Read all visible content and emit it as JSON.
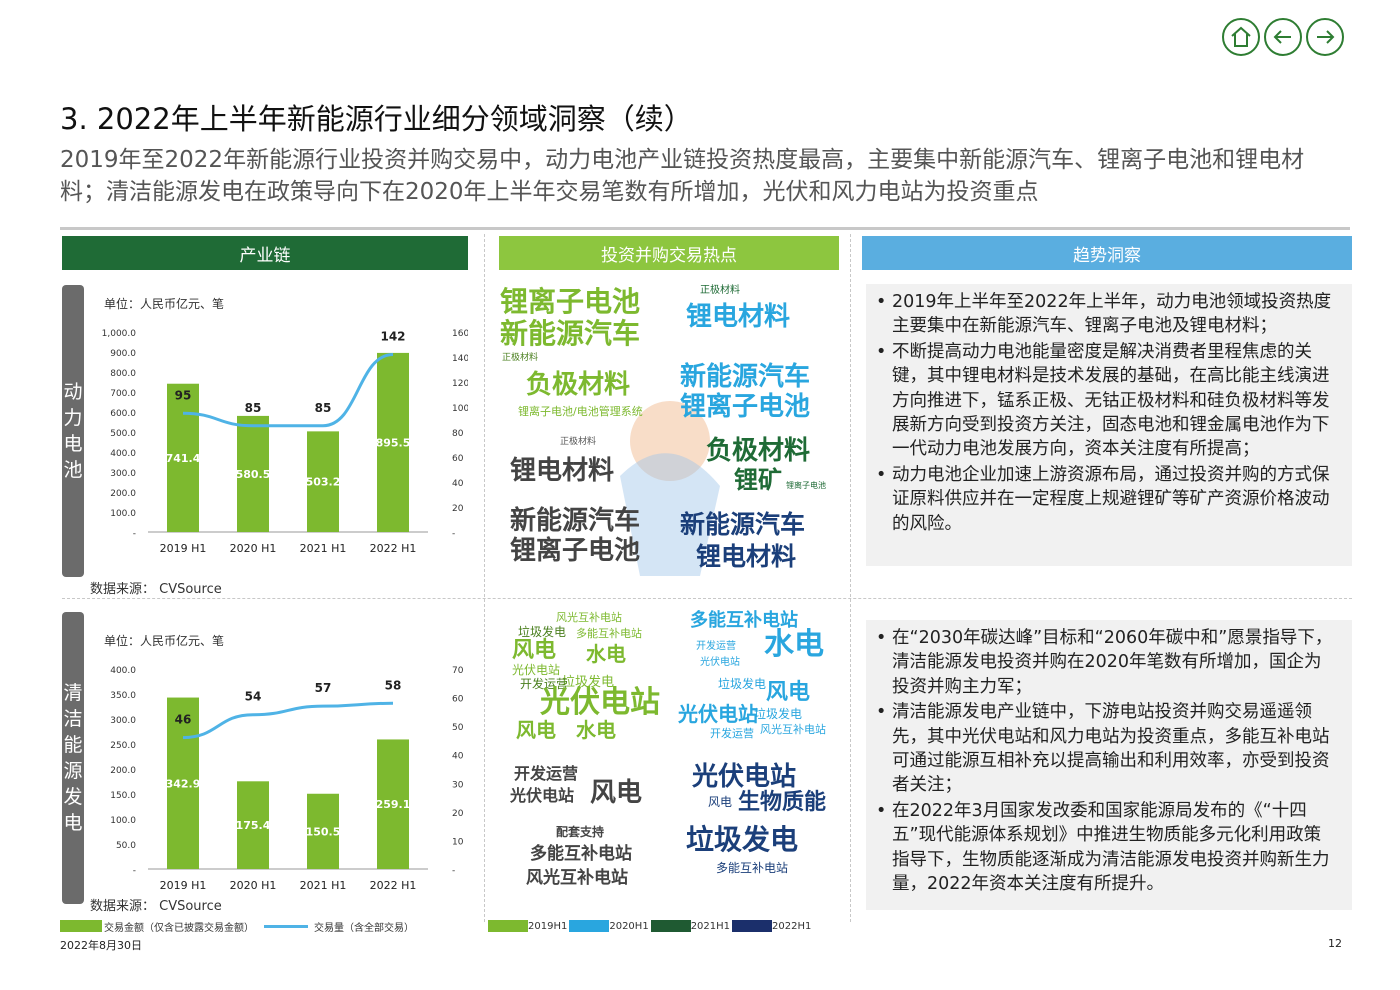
{
  "nav": {
    "home_icon": "home-icon",
    "back_icon": "arrow-left-icon",
    "next_icon": "arrow-right-icon",
    "color": "#2e7d32"
  },
  "title": "3. 2022年上半年新能源行业细分领域洞察（续）",
  "subtitle": "2019年至2022年新能源行业投资并购交易中，动力电池产业链投资热度最高，主要集中新能源汽车、锂离子电池和锂电材料；清洁能源发电在政策导向下在2020年上半年交易笔数有所增加，光伏和风力电站为投资重点",
  "columns": {
    "chain": {
      "label": "产业链",
      "color": "#1f6b36"
    },
    "hotspot": {
      "label": "投资并购交易热点",
      "color": "#8dc63f"
    },
    "trend": {
      "label": "趋势洞察",
      "color": "#5aaee0"
    }
  },
  "colors": {
    "bar": "#7db92f",
    "line": "#4fb3e6"
  },
  "sections": [
    {
      "side_label": "动力电池",
      "unit": "单位：人民币亿元、笔",
      "source": "数据来源：  CVSource",
      "chart_data": {
        "type": "bar",
        "categories": [
          "2019 H1",
          "2020 H1",
          "2021 H1",
          "2022 H1"
        ],
        "series": [
          {
            "name": "交易金额（仅含已披露交易金额）",
            "kind": "bar",
            "axis": "left",
            "values": [
              741.4,
              580.5,
              503.2,
              895.5
            ]
          },
          {
            "name": "交易量（含全部交易）",
            "kind": "line",
            "axis": "right",
            "values": [
              95,
              85,
              85,
              142
            ]
          }
        ],
        "y_left": {
          "range": [
            0,
            1000
          ],
          "ticks": [
            "-",
            "100.0",
            "200.0",
            "300.0",
            "400.0",
            "500.0",
            "600.0",
            "700.0",
            "800.0",
            "900.0",
            "1,000.0"
          ]
        },
        "y_right": {
          "range": [
            0,
            160
          ],
          "ticks": [
            "-",
            "20",
            "40",
            "60",
            "80",
            "100",
            "120",
            "140",
            "160"
          ]
        },
        "bar_labels": [
          "741.4",
          "580.5",
          "503.2",
          "895.5"
        ],
        "line_labels": [
          "95",
          "85",
          "85",
          "142"
        ]
      },
      "cloud": [
        [
          "锂离子电池",
          28,
          "#7db92f",
          0,
          12,
          true
        ],
        [
          "新能源汽车",
          28,
          "#7db92f",
          0,
          44,
          true
        ],
        [
          "正极材料",
          9,
          "#4a7f1e",
          2,
          78,
          false
        ],
        [
          "负极材料",
          26,
          "#7db92f",
          26,
          96,
          true
        ],
        [
          "锂离子电池/电池管理系统",
          11,
          "#7db92f",
          18,
          130,
          false
        ],
        [
          "锂电材料",
          26,
          "#444444",
          10,
          182,
          true
        ],
        [
          "正极材料",
          9,
          "#555555",
          60,
          162,
          false
        ],
        [
          "新能源汽车",
          26,
          "#444444",
          10,
          232,
          true
        ],
        [
          "锂离子电池",
          26,
          "#444444",
          10,
          262,
          true
        ],
        [
          "正极材料",
          10,
          "#1f6b36",
          200,
          10,
          false
        ],
        [
          "锂电材料",
          26,
          "#29a6df",
          186,
          28,
          true
        ],
        [
          "新能源汽车",
          26,
          "#29a6df",
          180,
          88,
          true
        ],
        [
          "锂离子电池",
          26,
          "#29a6df",
          180,
          118,
          true
        ],
        [
          "负极材料",
          26,
          "#1f6b36",
          206,
          162,
          true
        ],
        [
          "锂矿",
          24,
          "#1f6b36",
          234,
          192,
          true
        ],
        [
          "锂离子电池",
          8,
          "#1f6b36",
          286,
          206,
          false
        ],
        [
          "新能源汽车",
          25,
          "#1b3f7a",
          180,
          236,
          true
        ],
        [
          "锂电材料",
          25,
          "#1b3f7a",
          196,
          268,
          true
        ]
      ]
    },
    {
      "side_label": "清洁能源发电",
      "unit": "单位：人民币亿元、笔",
      "source": "数据来源：  CVSource",
      "chart_data": {
        "type": "bar",
        "categories": [
          "2019 H1",
          "2020 H1",
          "2021 H1",
          "2022 H1"
        ],
        "series": [
          {
            "name": "交易金额（仅含已披露交易金额）",
            "kind": "bar",
            "axis": "left",
            "values": [
              342.9,
              175.4,
              150.5,
              259.1
            ]
          },
          {
            "name": "交易量（含全部交易）",
            "kind": "line",
            "axis": "right",
            "values": [
              46,
              54,
              57,
              58
            ]
          }
        ],
        "y_left": {
          "range": [
            0,
            400
          ],
          "ticks": [
            "-",
            "50.0",
            "100.0",
            "150.0",
            "200.0",
            "250.0",
            "300.0",
            "350.0",
            "400.0"
          ]
        },
        "y_right": {
          "range": [
            0,
            70
          ],
          "ticks": [
            "-",
            "10",
            "20",
            "30",
            "40",
            "50",
            "60",
            "70"
          ]
        },
        "bar_labels": [
          "342.9",
          "175.4",
          "150.5",
          "259.1"
        ],
        "line_labels": [
          "46",
          "54",
          "57",
          "58"
        ]
      },
      "cloud": [
        [
          "风光互补电站",
          11,
          "#7db92f",
          56,
          12,
          false
        ],
        [
          "垃圾发电",
          12,
          "#4a7f1e",
          18,
          26,
          false
        ],
        [
          "多能互补电站",
          11,
          "#7db92f",
          76,
          28,
          false
        ],
        [
          "风电",
          22,
          "#7db92f",
          12,
          40,
          true
        ],
        [
          "水电",
          20,
          "#7db92f",
          86,
          44,
          true
        ],
        [
          "光伏电站",
          12,
          "#7db92f",
          12,
          64,
          false
        ],
        [
          "垃圾发电",
          13,
          "#7db92f",
          62,
          76,
          false
        ],
        [
          "开发运营",
          12,
          "#4a7f1e",
          20,
          78,
          false
        ],
        [
          "光伏电站",
          30,
          "#7db92f",
          40,
          88,
          true
        ],
        [
          "风电",
          20,
          "#7db92f",
          16,
          120,
          true
        ],
        [
          "水电",
          20,
          "#7db92f",
          76,
          120,
          true
        ],
        [
          "开发运营",
          16,
          "#444444",
          14,
          166,
          true
        ],
        [
          "光伏电站",
          16,
          "#444444",
          10,
          188,
          true
        ],
        [
          "风电",
          26,
          "#444444",
          90,
          180,
          true
        ],
        [
          "配套支持",
          12,
          "#444444",
          56,
          226,
          true
        ],
        [
          "多能互补电站",
          17,
          "#444444",
          30,
          246,
          true
        ],
        [
          "风光互补电站",
          17,
          "#444444",
          26,
          270,
          true
        ],
        [
          "多能互补电站",
          18,
          "#29a6df",
          190,
          12,
          true
        ],
        [
          "水电",
          30,
          "#29a6df",
          264,
          30,
          true
        ],
        [
          "开发运营",
          10,
          "#29a6df",
          196,
          42,
          false
        ],
        [
          "光伏电站",
          10,
          "#29a6df",
          200,
          58,
          false
        ],
        [
          "垃圾发电",
          12,
          "#29a6df",
          218,
          78,
          false
        ],
        [
          "风电",
          22,
          "#29a6df",
          266,
          82,
          true
        ],
        [
          "光伏电站",
          20,
          "#29a6df",
          178,
          104,
          true
        ],
        [
          "垃圾发电",
          12,
          "#29a6df",
          254,
          108,
          false
        ],
        [
          "风光互补电站",
          11,
          "#29a6df",
          260,
          124,
          false
        ],
        [
          "开发运营",
          11,
          "#29a6df",
          210,
          128,
          false
        ],
        [
          "光伏电站",
          26,
          "#1b3f7a",
          192,
          164,
          true
        ],
        [
          "风电",
          12,
          "#1b3f7a",
          208,
          196,
          false
        ],
        [
          "生物质能",
          22,
          "#1b3f7a",
          238,
          192,
          true
        ],
        [
          "垃圾发电",
          28,
          "#1b3f7a",
          186,
          226,
          true
        ],
        [
          "多能互补电站",
          12,
          "#1b3f7a",
          216,
          262,
          false
        ]
      ]
    }
  ],
  "insights": [
    [
      "2019年上半年至2022年上半年，动力电池领域投资热度主要集中在新能源汽车、锂离子电池及锂电材料；",
      "不断提高动力电池能量密度是解决消费者里程焦虑的关键，其中锂电材料是技术发展的基础，在高比能主线演进方向推进下，锰系正极、无钴正极材料和硅负极材料等发展新方向受到投资方关注，固态电池和锂金属电池作为下一代动力电池发展方向，资本关注度有所提高；",
      "动力电池企业加速上游资源布局，通过投资并购的方式保证原料供应并在一定程度上规避锂矿等矿产资源价格波动的风险。"
    ],
    [
      "在“2030年碳达峰”目标和“2060年碳中和”愿景指导下，清洁能源发电投资并购在2020年笔数有所增加，国企为投资并购主力军；",
      "清洁能源发电产业链中，下游电站投资并购交易遥遥领先，其中光伏电站和风力电站为投资重点，多能互补电站可通过能源互相补充以提高输出和利用效率，亦受到投资者关注；",
      "在2022年3月国家发改委和国家能源局发布的《“十四五”现代能源体系规划》中推进生物质能多元化利用政策指导下，生物质能逐渐成为清洁能源发电投资并购新生力量，2022年资本关注度有所提升。"
    ]
  ],
  "legend": {
    "bar_label": "交易金额（仅含已披露交易金额）",
    "line_label": "交易量（含全部交易）",
    "years": [
      {
        "label": "2019H1",
        "color": "#7db92f"
      },
      {
        "label": "2020H1",
        "color": "#29a6df"
      },
      {
        "label": "2021H1",
        "color": "#1f5a32"
      },
      {
        "label": "2022H1",
        "color": "#1b2f6b"
      }
    ]
  },
  "footer": {
    "date": "2022年8月30日",
    "page": "12"
  }
}
